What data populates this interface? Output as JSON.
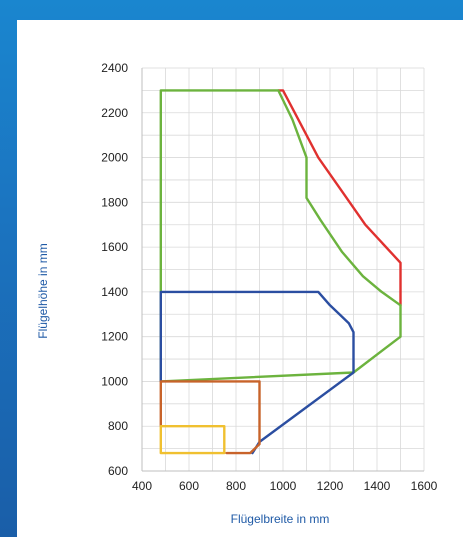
{
  "chart_data": {
    "type": "line",
    "title": "",
    "xlabel": "Flügelbreite in mm",
    "ylabel": "Flügelhöhe in mm",
    "xlim": [
      400,
      1600
    ],
    "ylim": [
      600,
      2400
    ],
    "xticks": [
      400,
      600,
      800,
      1000,
      1200,
      1400,
      1600
    ],
    "yticks": [
      600,
      800,
      1000,
      1200,
      1400,
      1600,
      1800,
      2000,
      2200,
      2400
    ],
    "minor_grid_x": 100,
    "minor_grid_y": 100,
    "grid": true,
    "legend": "none",
    "series": [
      {
        "color": "#e0312f",
        "points": [
          [
            980,
            2300
          ],
          [
            1000,
            2300
          ],
          [
            1050,
            2200
          ],
          [
            1150,
            2000
          ],
          [
            1250,
            1850
          ],
          [
            1350,
            1700
          ],
          [
            1500,
            1530
          ],
          [
            1500,
            1340
          ]
        ]
      },
      {
        "color": "#6cb33e",
        "points": [
          [
            1500,
            1340
          ],
          [
            1500,
            1200
          ],
          [
            1300,
            1040
          ],
          [
            480,
            1000
          ],
          [
            480,
            2300
          ],
          [
            980,
            2300
          ],
          [
            1040,
            2170
          ],
          [
            1100,
            2000
          ],
          [
            1100,
            1820
          ],
          [
            1160,
            1720
          ],
          [
            1250,
            1580
          ],
          [
            1340,
            1470
          ],
          [
            1420,
            1400
          ],
          [
            1500,
            1340
          ]
        ]
      },
      {
        "color": "#2b4ea1",
        "points": [
          [
            480,
            1000
          ],
          [
            480,
            1400
          ],
          [
            1150,
            1400
          ],
          [
            1200,
            1340
          ],
          [
            1250,
            1290
          ],
          [
            1280,
            1260
          ],
          [
            1300,
            1220
          ],
          [
            1300,
            1040
          ],
          [
            900,
            730
          ],
          [
            870,
            680
          ]
        ]
      },
      {
        "color": "#c8632a",
        "points": [
          [
            480,
            800
          ],
          [
            480,
            1000
          ],
          [
            900,
            1000
          ],
          [
            900,
            720
          ],
          [
            860,
            680
          ],
          [
            760,
            680
          ]
        ]
      },
      {
        "color": "#f0c030",
        "points": [
          [
            750,
            680
          ],
          [
            480,
            680
          ],
          [
            480,
            800
          ],
          [
            750,
            800
          ],
          [
            750,
            680
          ]
        ]
      }
    ]
  }
}
